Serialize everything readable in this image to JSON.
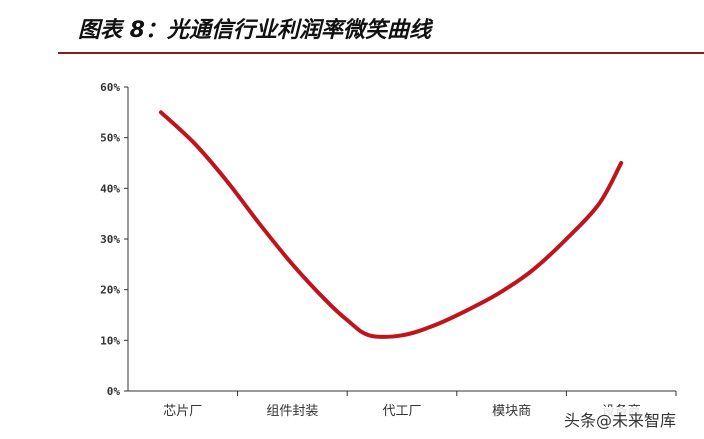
{
  "header": {
    "title": "图表 8：光通信行业利润率微笑曲线"
  },
  "chart_data": {
    "type": "line",
    "title": "图表 8：光通信行业利润率微笑曲线",
    "xlabel": "",
    "ylabel": "",
    "categories": [
      "芯片厂",
      "组件封装",
      "代工厂",
      "模块商",
      "设备商"
    ],
    "yticks": [
      "0%",
      "10%",
      "20%",
      "30%",
      "40%",
      "50%",
      "60%"
    ],
    "ylim": [
      0,
      60
    ],
    "series": [
      {
        "x": [
          0.3,
          0.6,
          0.9,
          1.2,
          1.5,
          1.8,
          2.0,
          2.2,
          2.5,
          2.8,
          3.1,
          3.4,
          3.7,
          4.0,
          4.3,
          4.5
        ],
        "values": [
          55,
          49,
          41.5,
          33,
          25,
          18,
          14,
          11,
          11,
          13,
          16,
          19.5,
          24,
          30,
          37,
          45
        ],
        "color": "#c0141c"
      }
    ],
    "grid": false,
    "legend": "none"
  },
  "watermark": {
    "text": "头条@未来智库"
  }
}
